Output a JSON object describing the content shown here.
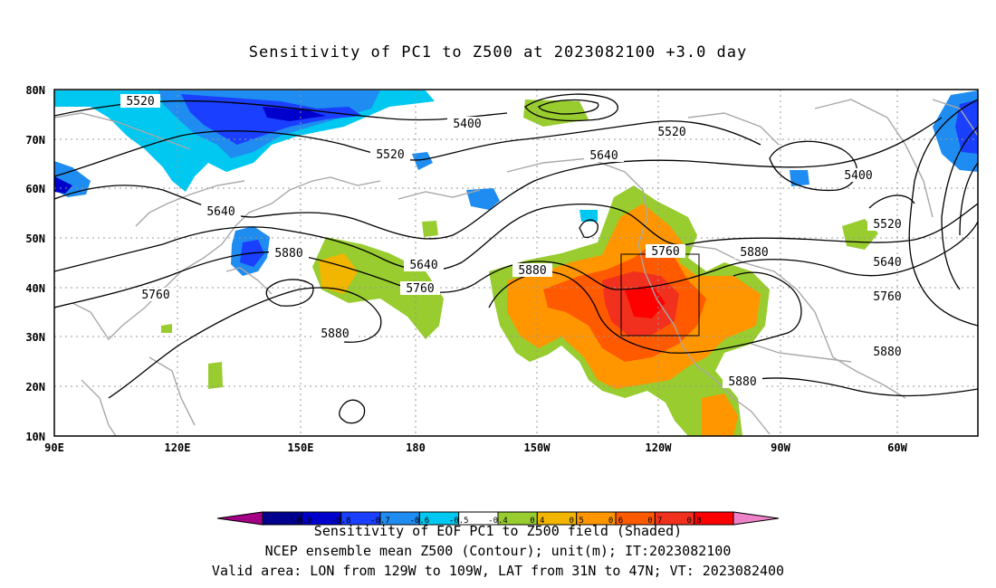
{
  "title": "Sensitivity of PC1 to Z500 at 2023082100 +3.0 day",
  "lat_labels": [
    "80N",
    "70N",
    "60N",
    "50N",
    "40N",
    "30N",
    "20N",
    "10N"
  ],
  "lon_labels": [
    "90E",
    "120E",
    "150E",
    "180",
    "150W",
    "120W",
    "90W",
    "60W"
  ],
  "contour_labels": [
    {
      "text": "5520"
    },
    {
      "text": "5400"
    },
    {
      "text": "5520"
    },
    {
      "text": "5520"
    },
    {
      "text": "5640"
    },
    {
      "text": "5400"
    },
    {
      "text": "5640"
    },
    {
      "text": "5880"
    },
    {
      "text": "5640"
    },
    {
      "text": "5760"
    },
    {
      "text": "5880"
    },
    {
      "text": "5760"
    },
    {
      "text": "5880"
    },
    {
      "text": "5520"
    },
    {
      "text": "5640"
    },
    {
      "text": "5760"
    },
    {
      "text": "5760"
    },
    {
      "text": "5880"
    },
    {
      "text": "5880"
    },
    {
      "text": "5880"
    }
  ],
  "colorbar": {
    "colors": [
      "#a40086",
      "#00008f",
      "#0000cc",
      "#1a3fff",
      "#1e8cf0",
      "#00c8f0",
      "#ffffff",
      "#98cc2f",
      "#f2b500",
      "#ff9600",
      "#ff5a00",
      "#f2301e",
      "#ff0000",
      "#ee82c8"
    ],
    "labels": [
      "-0.9",
      "-0.8",
      "-0.7",
      "-0.6",
      "-0.5",
      "-0.4",
      "0.4",
      "0.5",
      "0.6",
      "0.7",
      "0.8",
      "0.9"
    ]
  },
  "footer": {
    "line1": "Sensitivity of EOF PC1 to Z500 field (Shaded)",
    "line2": "NCEP ensemble mean Z500 (Contour); unit(m); IT:2023082100",
    "line3": "Valid area: LON from 129W to 109W, LAT from 31N to 47N; VT: 2023082400"
  }
}
